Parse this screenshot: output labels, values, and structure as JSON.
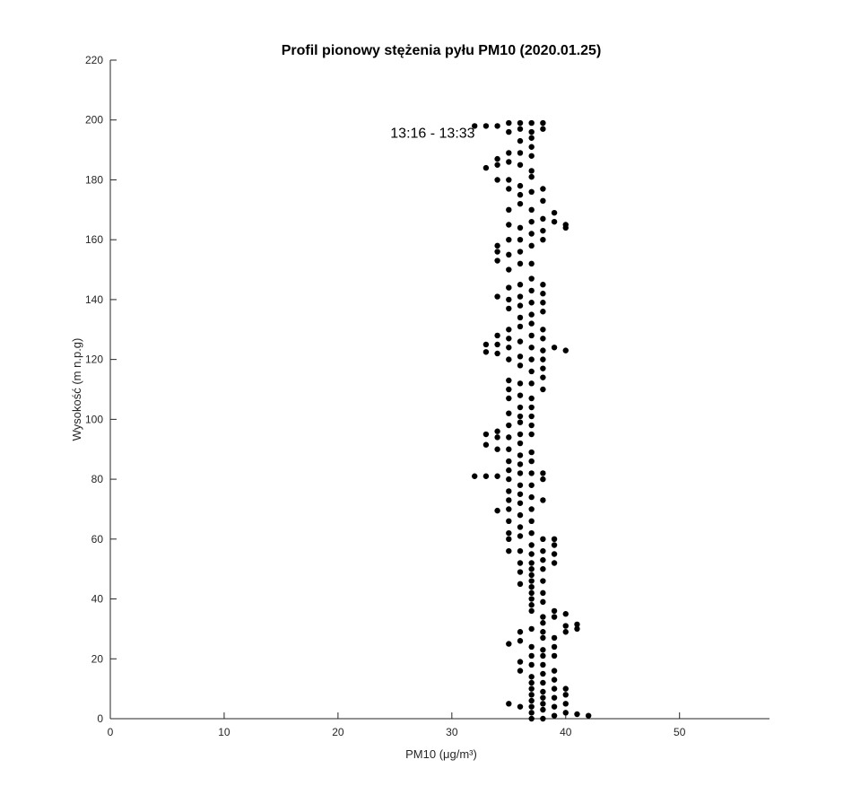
{
  "chart_data": {
    "type": "scatter",
    "title": "Profil pionowy stężenia pyłu PM10 (2020.01.25)",
    "x_label": "PM10 (μg/m³)",
    "y_label": "Wysokość (m n.p.g)",
    "annotation": {
      "text": "13:16 - 13:33",
      "x": 24.6,
      "y": 194
    },
    "color": "#000000",
    "xlim": [
      0,
      57.9
    ],
    "xticks": [
      0,
      10,
      20,
      30,
      40,
      50
    ],
    "ylim": [
      0,
      220
    ],
    "yticks": [
      0,
      20,
      40,
      60,
      80,
      100,
      120,
      140,
      160,
      180,
      200,
      220
    ],
    "grid": false,
    "x": [
      32,
      32,
      33,
      33,
      33,
      33,
      33,
      33,
      33,
      34,
      34,
      34,
      34,
      34,
      34,
      34,
      34,
      34,
      34,
      34,
      34,
      34,
      34,
      34,
      34,
      35,
      35,
      35,
      35,
      35,
      35,
      35,
      35,
      35,
      35,
      35,
      35,
      35,
      35,
      35,
      35,
      35,
      35,
      35,
      35,
      35,
      35,
      35,
      35,
      35,
      35,
      35,
      35,
      35,
      35,
      35,
      35,
      35,
      35,
      35,
      35,
      35,
      36,
      36,
      36,
      36,
      36,
      36,
      36,
      36,
      36,
      36,
      36,
      36,
      36,
      36,
      36,
      36,
      36,
      36,
      36,
      36,
      36,
      36,
      36,
      36,
      36,
      36,
      36,
      36,
      36,
      36,
      36,
      36,
      36,
      36,
      36,
      36,
      36,
      36,
      36,
      36,
      36,
      36,
      36,
      36,
      36,
      37,
      37,
      37,
      37,
      37,
      37,
      37,
      37,
      37,
      37,
      37,
      37,
      37,
      37,
      37,
      37,
      37,
      37,
      37,
      37,
      37,
      37,
      37,
      37,
      37,
      37,
      37,
      37,
      37,
      37,
      37,
      37,
      37,
      37,
      37,
      37,
      37,
      37,
      37,
      37,
      37,
      37,
      37,
      37,
      37,
      37,
      37,
      37,
      37,
      37,
      37,
      37,
      37,
      37,
      37,
      37,
      37,
      37,
      37,
      38,
      38,
      38,
      38,
      38,
      38,
      38,
      38,
      38,
      38,
      38,
      38,
      38,
      38,
      38,
      38,
      38,
      38,
      38,
      38,
      38,
      38,
      38,
      38,
      38,
      38,
      38,
      38,
      38,
      38,
      38,
      38,
      38,
      38,
      38,
      38,
      38,
      38,
      38,
      38,
      38,
      38,
      39,
      39,
      39,
      39,
      39,
      39,
      39,
      39,
      39,
      39,
      39,
      39,
      39,
      39,
      39,
      39,
      39,
      39,
      40,
      40,
      40,
      40,
      40,
      40,
      40,
      40,
      40,
      40,
      41,
      41,
      41,
      42
    ],
    "y": [
      81,
      198,
      81,
      91.5,
      95,
      122.5,
      125,
      184,
      198,
      69.5,
      81,
      90,
      94,
      96,
      122,
      125,
      128,
      141,
      153,
      156,
      158,
      180,
      185,
      187,
      198,
      5,
      25,
      56,
      60,
      62,
      66,
      70,
      73,
      76,
      80,
      83,
      86,
      90,
      94,
      98,
      102,
      107,
      110,
      113,
      120,
      124,
      127,
      130,
      137,
      140,
      144,
      150,
      155,
      160,
      165,
      170,
      177,
      180,
      186,
      189,
      196,
      199,
      4,
      16,
      19,
      26,
      29,
      45,
      49,
      52,
      56,
      61,
      64,
      68,
      72,
      75,
      78,
      82,
      85,
      88,
      92,
      95,
      99,
      101,
      104,
      108,
      112,
      118,
      121,
      126,
      131,
      134,
      138,
      141,
      145,
      152,
      156,
      160,
      164,
      172,
      175,
      178,
      185,
      189,
      193,
      197,
      199,
      0,
      2,
      4,
      6,
      8,
      10,
      12,
      14,
      18,
      21,
      24,
      30,
      36,
      38,
      40,
      42,
      44,
      46,
      48,
      50,
      52,
      55,
      58,
      62,
      66,
      70,
      74,
      78,
      82,
      86,
      89,
      95,
      98,
      101,
      104,
      107,
      112,
      116,
      120,
      124,
      128,
      132,
      135,
      139,
      143,
      147,
      152,
      158,
      162,
      166,
      170,
      176,
      181,
      183,
      188,
      191,
      194,
      196,
      199,
      0,
      3,
      5,
      7,
      9,
      12,
      15,
      18,
      21,
      23,
      27,
      29,
      32,
      34,
      39,
      42,
      46,
      50,
      53,
      56,
      60,
      73,
      80,
      82,
      110,
      114,
      117,
      120,
      123,
      127,
      130,
      136,
      139,
      142,
      145,
      160,
      163,
      167,
      173,
      177,
      197,
      199,
      1,
      4,
      7,
      10,
      13,
      16,
      21,
      24,
      27,
      34,
      36,
      52,
      55,
      58,
      60,
      124,
      166,
      169,
      2,
      5,
      8,
      10,
      29,
      31,
      35,
      123,
      164,
      165,
      1.5,
      30,
      31.5,
      1
    ]
  }
}
